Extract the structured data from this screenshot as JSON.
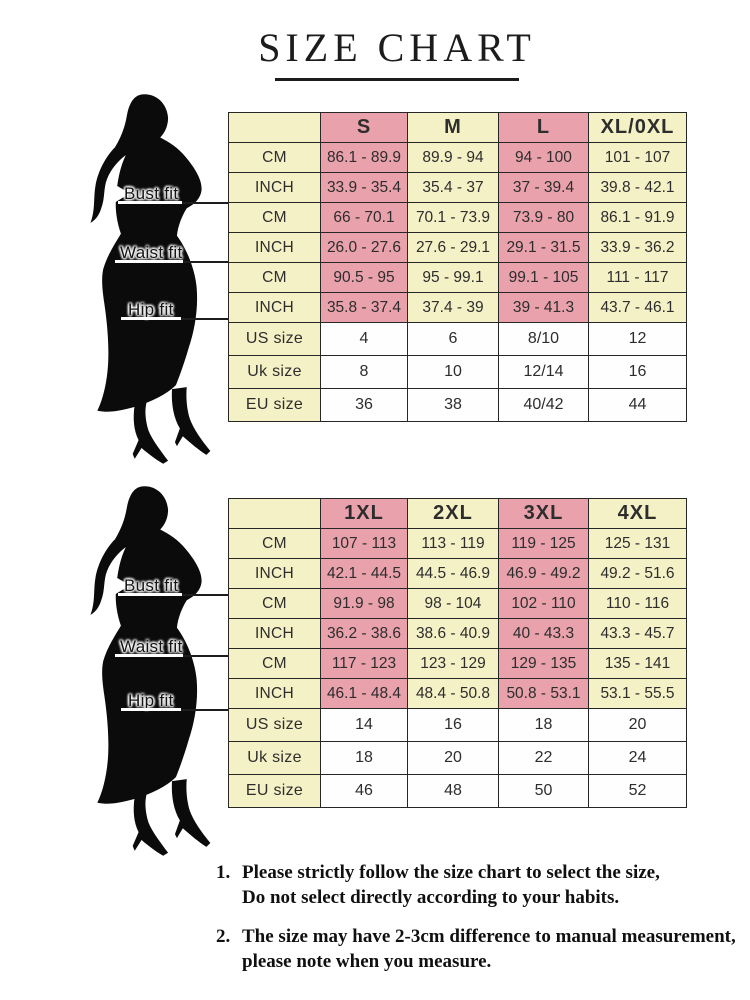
{
  "title": "SIZE CHART",
  "colors": {
    "pink": "#E9A1AC",
    "cream": "#F5F1C6",
    "white": "#FEFEFE",
    "border": "#272727",
    "text": "#2d2d2d"
  },
  "figure_labels": [
    "Bust fit",
    "Waist fit",
    "Hip fit"
  ],
  "chart_data": [
    {
      "type": "table",
      "name": "sizes-S-to-XL",
      "columns": [
        "",
        "S",
        "M",
        "L",
        "XL/0XL"
      ],
      "rows": [
        {
          "group": "bust",
          "label": "CM",
          "zone": "measure",
          "values": [
            "86.1 - 89.9",
            "89.9 - 94",
            "94 - 100",
            "101 - 107"
          ]
        },
        {
          "group": "bust",
          "label": "INCH",
          "zone": "measure",
          "values": [
            "33.9 - 35.4",
            "35.4 - 37",
            "37 - 39.4",
            "39.8 - 42.1"
          ]
        },
        {
          "group": "waist",
          "label": "CM",
          "zone": "measure",
          "values": [
            "66 - 70.1",
            "70.1 - 73.9",
            "73.9 - 80",
            "86.1 - 91.9"
          ]
        },
        {
          "group": "waist",
          "label": "INCH",
          "zone": "measure",
          "values": [
            "26.0 - 27.6",
            "27.6 - 29.1",
            "29.1 - 31.5",
            "33.9 - 36.2"
          ]
        },
        {
          "group": "hip",
          "label": "CM",
          "zone": "measure",
          "values": [
            "90.5 - 95",
            "95 - 99.1",
            "99.1 - 105",
            "111 - 117"
          ]
        },
        {
          "group": "hip",
          "label": "INCH",
          "zone": "measure",
          "values": [
            "35.8 - 37.4",
            "37.4 - 39",
            "39 - 41.3",
            "43.7 - 46.1"
          ]
        },
        {
          "group": "size",
          "label": "US size",
          "zone": "size",
          "values": [
            "4",
            "6",
            "8/10",
            "12"
          ]
        },
        {
          "group": "size",
          "label": "Uk size",
          "zone": "size",
          "values": [
            "8",
            "10",
            "12/14",
            "16"
          ]
        },
        {
          "group": "size",
          "label": "EU size",
          "zone": "size",
          "values": [
            "36",
            "38",
            "40/42",
            "44"
          ]
        }
      ]
    },
    {
      "type": "table",
      "name": "sizes-1XL-to-4XL",
      "columns": [
        "",
        "1XL",
        "2XL",
        "3XL",
        "4XL"
      ],
      "rows": [
        {
          "group": "bust",
          "label": "CM",
          "zone": "measure",
          "values": [
            "107 - 113",
            "113 - 119",
            "119 - 125",
            "125 - 131"
          ]
        },
        {
          "group": "bust",
          "label": "INCH",
          "zone": "measure",
          "values": [
            "42.1 - 44.5",
            "44.5 - 46.9",
            "46.9 - 49.2",
            "49.2 - 51.6"
          ]
        },
        {
          "group": "waist",
          "label": "CM",
          "zone": "measure",
          "values": [
            "91.9 - 98",
            "98 - 104",
            "102 - 110",
            "110 - 116"
          ]
        },
        {
          "group": "waist",
          "label": "INCH",
          "zone": "measure",
          "values": [
            "36.2 - 38.6",
            "38.6 - 40.9",
            "40 - 43.3",
            "43.3 - 45.7"
          ]
        },
        {
          "group": "hip",
          "label": "CM",
          "zone": "measure",
          "values": [
            "117 - 123",
            "123 - 129",
            "129 - 135",
            "135 - 141"
          ]
        },
        {
          "group": "hip",
          "label": "INCH",
          "zone": "measure",
          "values": [
            "46.1 - 48.4",
            "48.4 - 50.8",
            "50.8 - 53.1",
            "53.1 - 55.5"
          ]
        },
        {
          "group": "size",
          "label": "US size",
          "zone": "size",
          "values": [
            "14",
            "16",
            "18",
            "20"
          ]
        },
        {
          "group": "size",
          "label": "Uk size",
          "zone": "size",
          "values": [
            "18",
            "20",
            "22",
            "24"
          ]
        },
        {
          "group": "size",
          "label": "EU size",
          "zone": "size",
          "values": [
            "46",
            "48",
            "50",
            "52"
          ]
        }
      ]
    }
  ],
  "notes": [
    {
      "num": "1.",
      "line1": "Please strictly follow the size chart to select the size,",
      "line2": "Do not select directly according to your habits."
    },
    {
      "num": "2.",
      "line1": "The size may have 2-3cm difference to manual measurement,",
      "line2": "please note when you measure."
    }
  ]
}
